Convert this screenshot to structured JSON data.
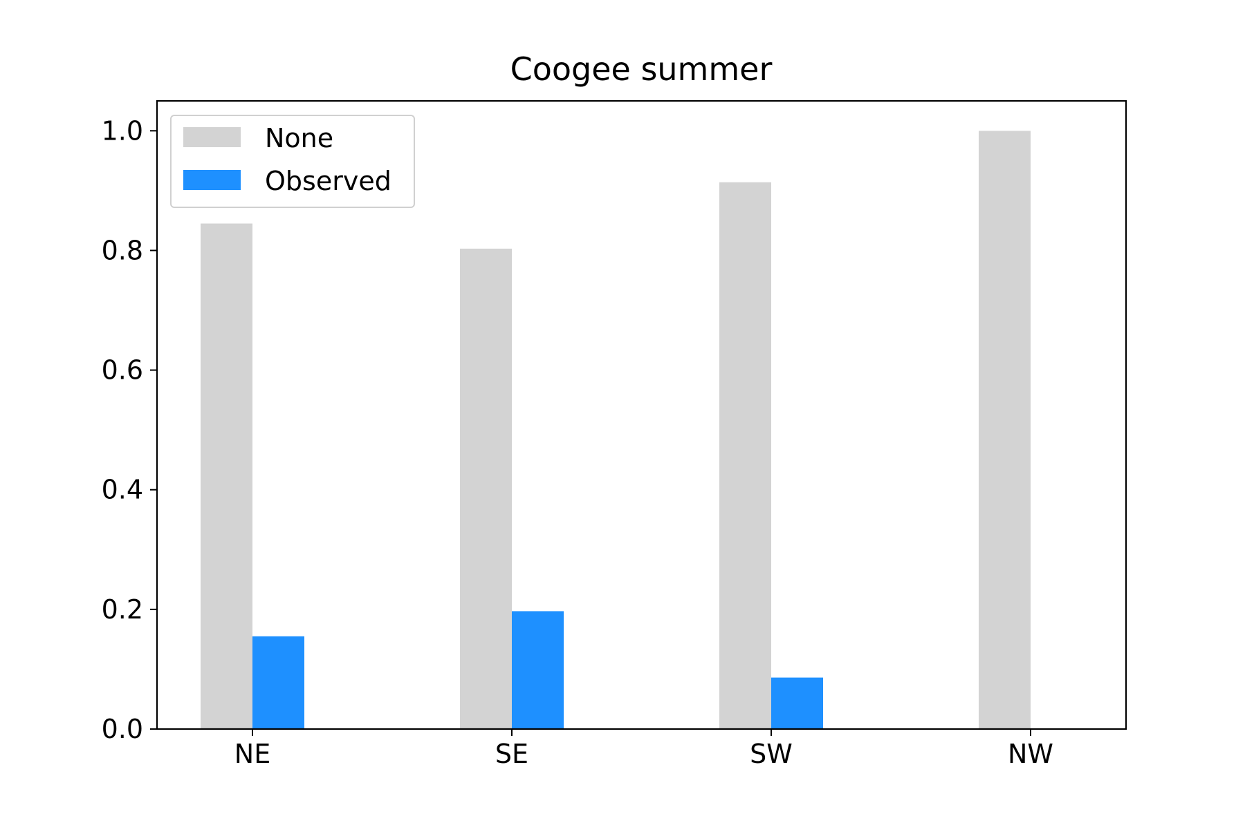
{
  "chart_data": {
    "type": "bar",
    "title": "Coogee summer",
    "xlabel": "",
    "ylabel": "",
    "categories": [
      "NE",
      "SE",
      "SW",
      "NW"
    ],
    "series": [
      {
        "name": "None",
        "values": [
          0.845,
          0.803,
          0.914,
          1.0
        ],
        "color": "#d3d3d3"
      },
      {
        "name": "Observed",
        "values": [
          0.155,
          0.197,
          0.086,
          0.0
        ],
        "color": "#1e90ff"
      }
    ],
    "ylim": [
      0,
      1.05
    ],
    "yticks": [
      0.0,
      0.2,
      0.4,
      0.6,
      0.8,
      1.0
    ],
    "ytick_labels": [
      "0.0",
      "0.2",
      "0.4",
      "0.6",
      "0.8",
      "1.0"
    ],
    "grid": false,
    "legend": {
      "placement": "top-left",
      "entries": [
        "None",
        "Observed"
      ]
    }
  }
}
